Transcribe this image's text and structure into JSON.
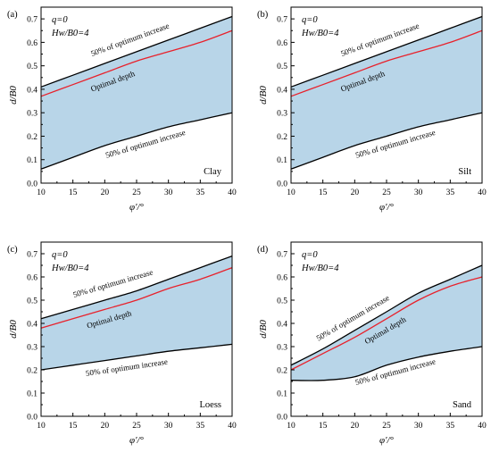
{
  "chart_data": [
    {
      "type": "area",
      "panel_label": "(a)",
      "soil_label": "Clay",
      "param_line1": "q=0",
      "param_line2": "Hw/B0=4",
      "xlabel": "φ'/°",
      "ylabel": "d/B0",
      "xlim": [
        10,
        40
      ],
      "ylim": [
        0,
        0.75
      ],
      "xticks": [
        10,
        15,
        20,
        25,
        30,
        35,
        40
      ],
      "yticks": [
        0.0,
        0.1,
        0.2,
        0.3,
        0.4,
        0.5,
        0.6,
        0.7
      ],
      "ann_upper": "50% of optimum increase",
      "ann_optimal": "Optimal depth",
      "ann_lower": "50% of optimum increase",
      "x": [
        10,
        15,
        20,
        25,
        30,
        35,
        40
      ],
      "series": [
        {
          "name": "50% of optimum increase",
          "role": "upper",
          "values": [
            0.41,
            0.46,
            0.51,
            0.56,
            0.61,
            0.66,
            0.71
          ]
        },
        {
          "name": "Optimal depth",
          "role": "optimal",
          "values": [
            0.37,
            0.42,
            0.47,
            0.52,
            0.56,
            0.6,
            0.65
          ]
        },
        {
          "name": "50% of optimum increase",
          "role": "lower",
          "values": [
            0.06,
            0.11,
            0.16,
            0.2,
            0.24,
            0.27,
            0.3
          ]
        }
      ]
    },
    {
      "type": "area",
      "panel_label": "(b)",
      "soil_label": "Silt",
      "param_line1": "q=0",
      "param_line2": "Hw/B0=4",
      "xlabel": "φ'/°",
      "ylabel": "d/B0",
      "xlim": [
        10,
        40
      ],
      "ylim": [
        0,
        0.75
      ],
      "xticks": [
        10,
        15,
        20,
        25,
        30,
        35,
        40
      ],
      "yticks": [
        0.0,
        0.1,
        0.2,
        0.3,
        0.4,
        0.5,
        0.6,
        0.7
      ],
      "ann_upper": "50% of optimum increase",
      "ann_optimal": "Optimal depth",
      "ann_lower": "50% of optimum increase",
      "x": [
        10,
        15,
        20,
        25,
        30,
        35,
        40
      ],
      "series": [
        {
          "name": "50% of optimum increase",
          "role": "upper",
          "values": [
            0.41,
            0.46,
            0.51,
            0.56,
            0.61,
            0.66,
            0.71
          ]
        },
        {
          "name": "Optimal depth",
          "role": "optimal",
          "values": [
            0.37,
            0.42,
            0.47,
            0.52,
            0.56,
            0.6,
            0.65
          ]
        },
        {
          "name": "50% of optimum increase",
          "role": "lower",
          "values": [
            0.06,
            0.11,
            0.16,
            0.2,
            0.24,
            0.27,
            0.3
          ]
        }
      ]
    },
    {
      "type": "area",
      "panel_label": "(c)",
      "soil_label": "Loess",
      "param_line1": "q=0",
      "param_line2": "Hw/B0=4",
      "xlabel": "φ'/°",
      "ylabel": "d/B0",
      "xlim": [
        10,
        40
      ],
      "ylim": [
        0,
        0.75
      ],
      "xticks": [
        10,
        15,
        20,
        25,
        30,
        35,
        40
      ],
      "yticks": [
        0.0,
        0.1,
        0.2,
        0.3,
        0.4,
        0.5,
        0.6,
        0.7
      ],
      "ann_upper": "50% of optimum increase",
      "ann_optimal": "Optimal depth",
      "ann_lower": "50% of optimum increase",
      "x": [
        10,
        15,
        20,
        25,
        30,
        35,
        40
      ],
      "series": [
        {
          "name": "50% of optimum increase",
          "role": "upper",
          "values": [
            0.42,
            0.46,
            0.5,
            0.54,
            0.59,
            0.64,
            0.69
          ]
        },
        {
          "name": "Optimal depth",
          "role": "optimal",
          "values": [
            0.38,
            0.42,
            0.46,
            0.5,
            0.55,
            0.59,
            0.64
          ]
        },
        {
          "name": "50% of optimum increase",
          "role": "lower",
          "values": [
            0.2,
            0.22,
            0.24,
            0.26,
            0.28,
            0.295,
            0.31
          ]
        }
      ]
    },
    {
      "type": "area",
      "panel_label": "(d)",
      "soil_label": "Sand",
      "param_line1": "q=0",
      "param_line2": "Hw/B0=4",
      "xlabel": "φ'/°",
      "ylabel": "d/B0",
      "xlim": [
        10,
        40
      ],
      "ylim": [
        0,
        0.75
      ],
      "xticks": [
        10,
        15,
        20,
        25,
        30,
        35,
        40
      ],
      "yticks": [
        0.0,
        0.1,
        0.2,
        0.3,
        0.4,
        0.5,
        0.6,
        0.7
      ],
      "ann_upper": "50% of optimum increase",
      "ann_optimal": "Optimal depth",
      "ann_lower": "50% of optimum increase",
      "x": [
        10,
        15,
        20,
        25,
        30,
        35,
        40
      ],
      "series": [
        {
          "name": "50% of optimum increase",
          "role": "upper",
          "values": [
            0.22,
            0.29,
            0.37,
            0.45,
            0.53,
            0.59,
            0.65
          ]
        },
        {
          "name": "Optimal depth",
          "role": "optimal",
          "values": [
            0.2,
            0.27,
            0.34,
            0.42,
            0.5,
            0.56,
            0.6
          ]
        },
        {
          "name": "50% of optimum increase",
          "role": "lower",
          "values": [
            0.155,
            0.155,
            0.17,
            0.22,
            0.255,
            0.28,
            0.3
          ]
        }
      ]
    }
  ],
  "colors": {
    "fill": "#b8d5e8",
    "boundary": "#000000",
    "optimal": "#e8212b",
    "axis": "#000000"
  }
}
